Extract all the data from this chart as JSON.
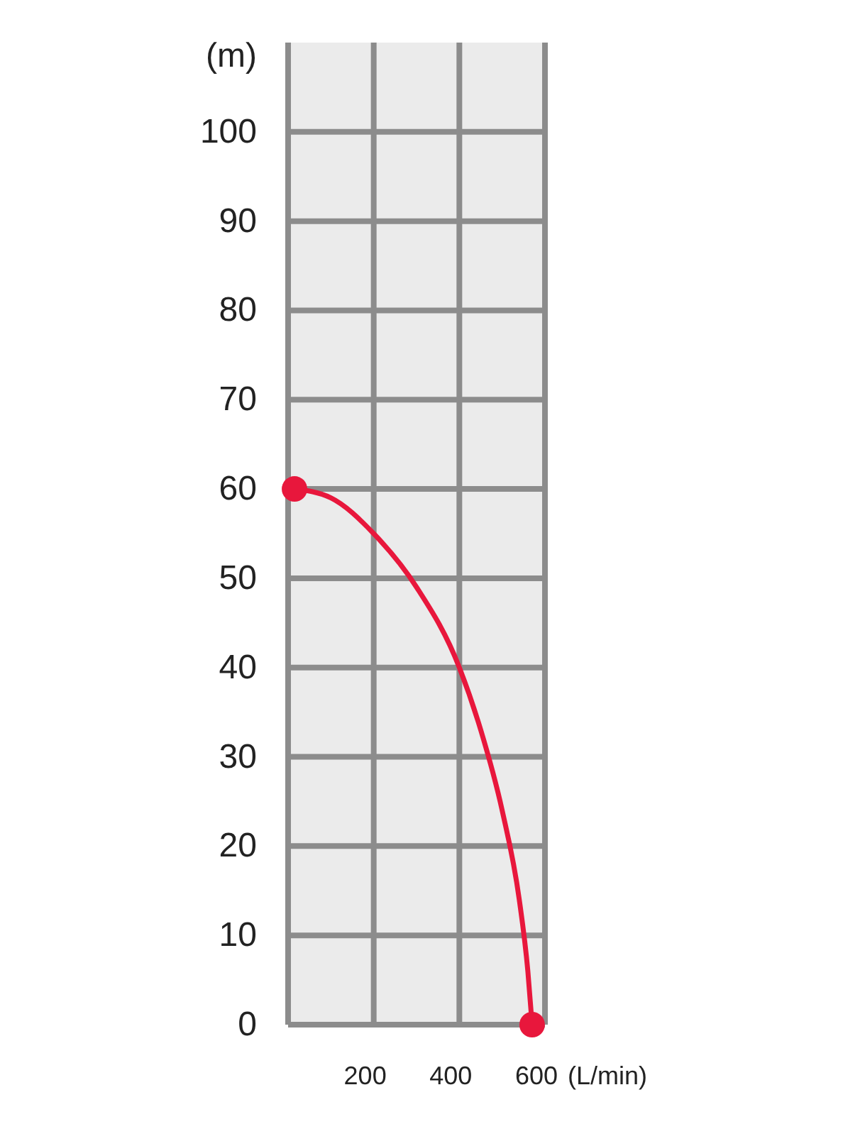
{
  "chart_data": {
    "type": "line",
    "xlabel": "(L/min)",
    "ylabel": "(m)",
    "xlim": [
      0,
      600
    ],
    "ylim": [
      0,
      110
    ],
    "xticks": [
      {
        "value": 0,
        "label": null
      },
      200,
      400,
      600
    ],
    "yticks": [
      0,
      10,
      20,
      30,
      40,
      50,
      60,
      70,
      80,
      90,
      100
    ],
    "grid": true,
    "series": [
      {
        "color": "#e8173c",
        "marker": "none",
        "x": [
          15,
          100,
          200,
          300,
          400,
          450,
          500,
          540,
          560,
          570
        ],
        "values": [
          60,
          59,
          55,
          49,
          40,
          33,
          24,
          14,
          6,
          0
        ]
      },
      {
        "type": "scatter",
        "color": "#e8173c",
        "marker": "circle",
        "x": [
          15,
          570
        ],
        "values": [
          60,
          0
        ]
      }
    ]
  }
}
